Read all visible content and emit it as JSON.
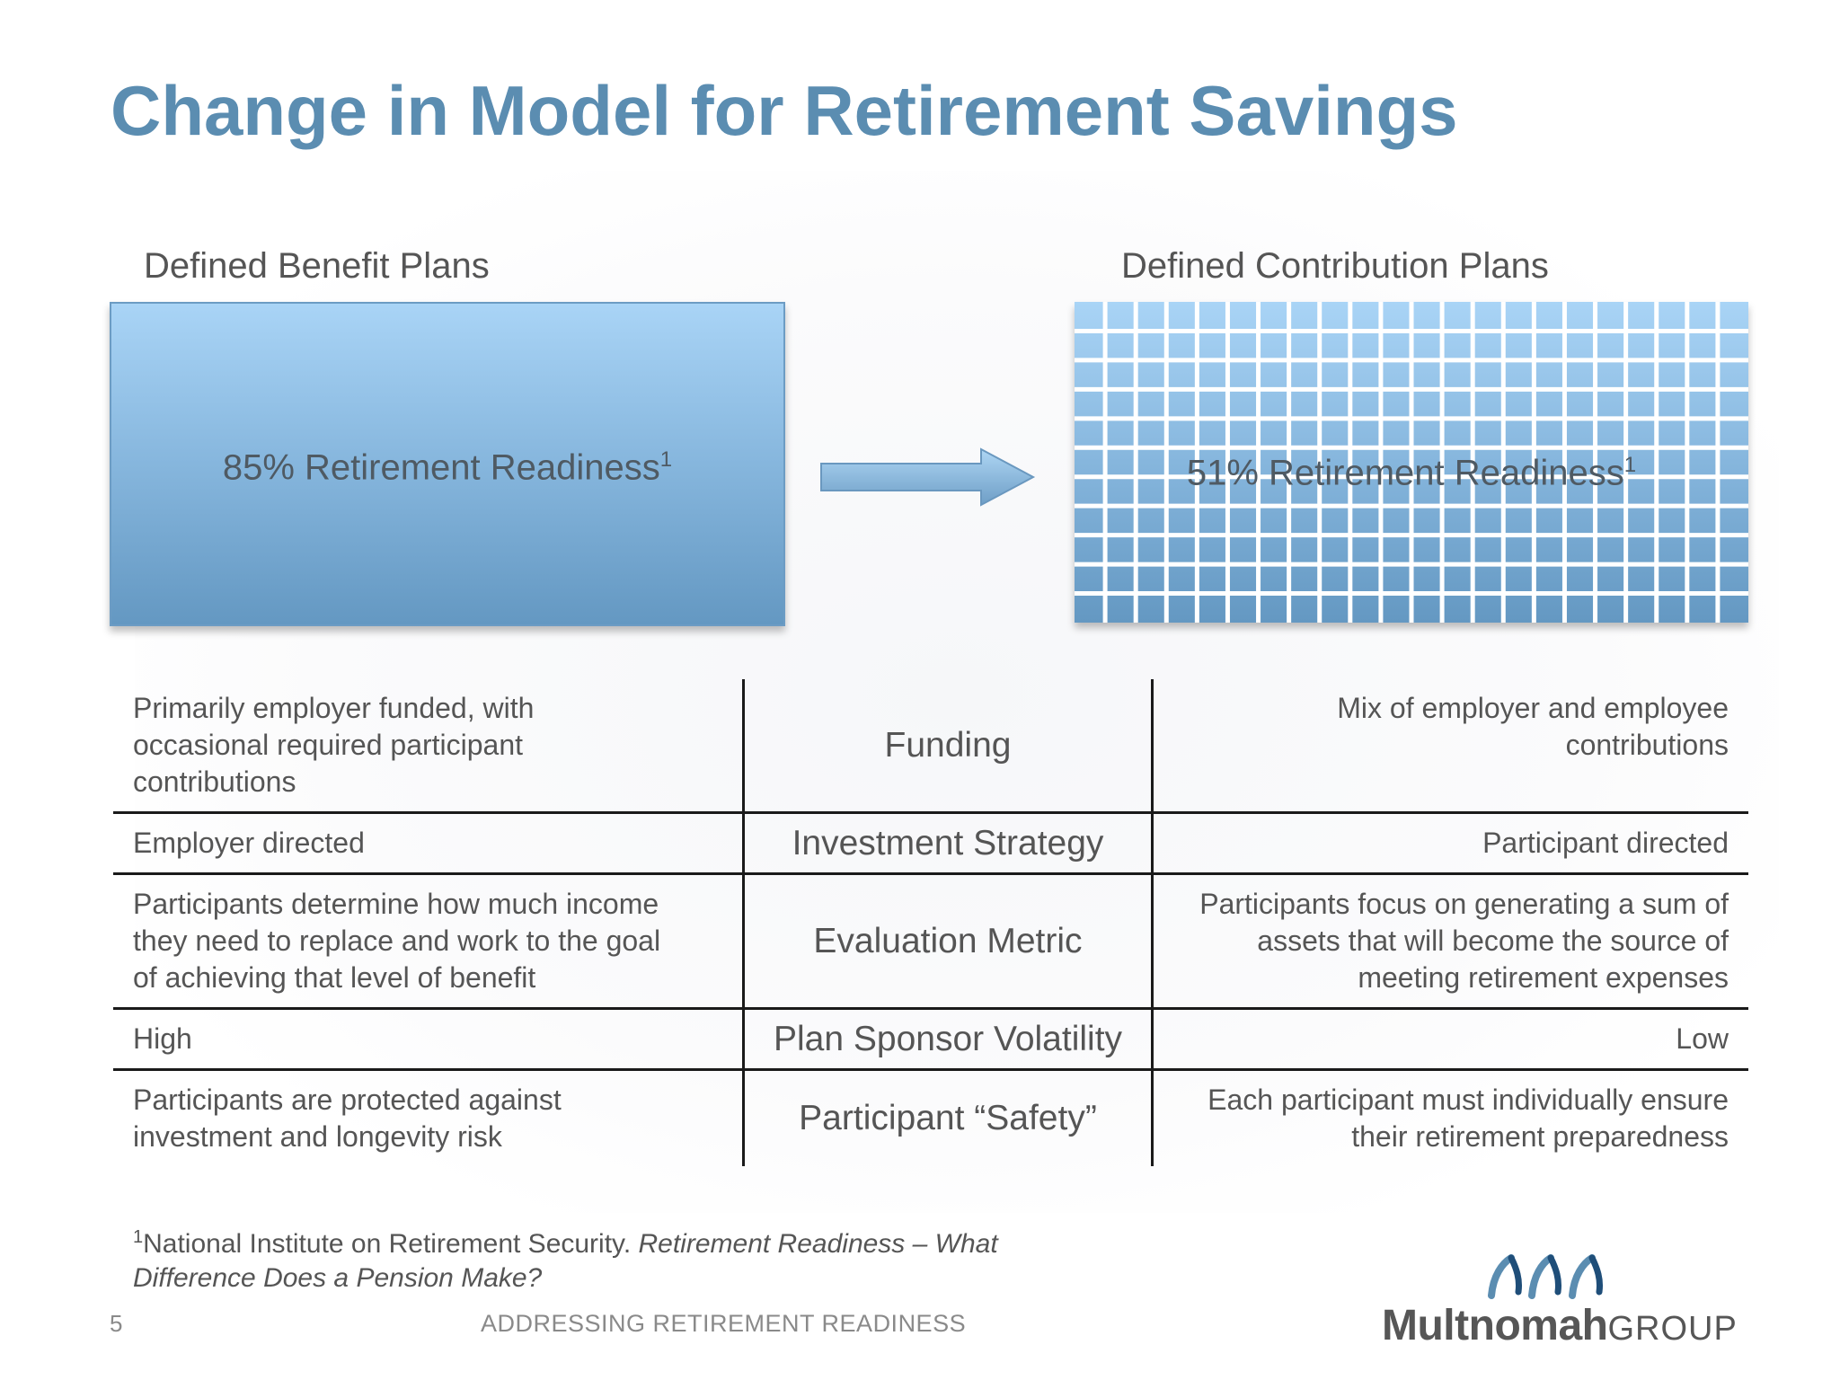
{
  "title": "Change in Model for Retirement Savings",
  "db_plan": {
    "label": "Defined Benefit Plans",
    "readiness": "85% Retirement Readiness",
    "sup": "1"
  },
  "dc_plan": {
    "label": "Defined Contribution Plans",
    "readiness": "51% Retirement Readiness",
    "sup": "1"
  },
  "comparison": {
    "rows": [
      {
        "metric": "Funding",
        "db": [
          "Primarily employer funded, with",
          "occasional required participant",
          "contributions"
        ],
        "dc": [
          "Mix of employer and employee",
          "contributions"
        ]
      },
      {
        "metric": "Investment Strategy",
        "db": [
          "Employer directed"
        ],
        "dc": [
          "Participant directed"
        ]
      },
      {
        "metric": "Evaluation Metric",
        "db": [
          "Participants determine how much income",
          "they need to replace and work to the goal",
          "of achieving that level of benefit"
        ],
        "dc": [
          "Participants focus on generating a sum of",
          "assets that will become the source of",
          "meeting retirement expenses"
        ]
      },
      {
        "metric": "Plan Sponsor Volatility",
        "db": [
          "High"
        ],
        "dc": [
          "Low"
        ]
      },
      {
        "metric": "Participant “Safety”",
        "db": [
          "Participants are protected against",
          "investment and longevity risk"
        ],
        "dc": [
          "Each participant must individually ensure",
          "their retirement preparedness"
        ]
      }
    ]
  },
  "footnote": {
    "sup": "1",
    "source": "National Institute on Retirement Security. ",
    "title_line1": "Retirement Readiness – What",
    "title_line2": "Difference Does a Pension Make?"
  },
  "footer": {
    "page_number": "5",
    "text": "ADDRESSING RETIREMENT READINESS"
  },
  "logo": {
    "word1": "Multnomah",
    "word2": "GROUP"
  },
  "colors": {
    "title": "#5b8db1",
    "box_top": "#a9d4f6",
    "box_bottom": "#6498c2"
  }
}
